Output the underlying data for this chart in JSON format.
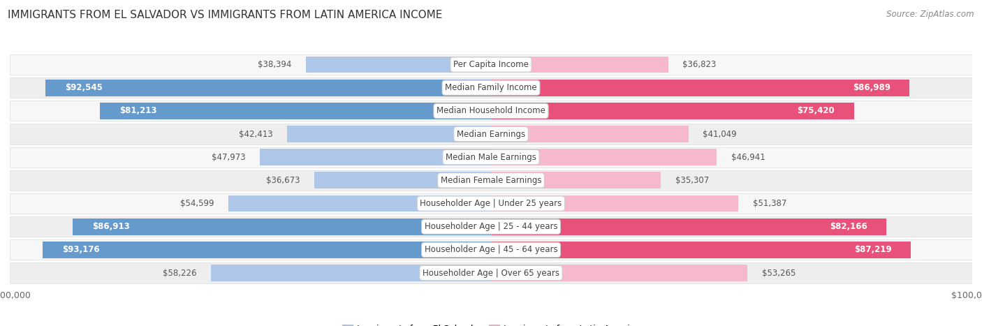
{
  "title": "IMMIGRANTS FROM EL SALVADOR VS IMMIGRANTS FROM LATIN AMERICA INCOME",
  "source": "Source: ZipAtlas.com",
  "categories": [
    "Per Capita Income",
    "Median Family Income",
    "Median Household Income",
    "Median Earnings",
    "Median Male Earnings",
    "Median Female Earnings",
    "Householder Age | Under 25 years",
    "Householder Age | 25 - 44 years",
    "Householder Age | 45 - 64 years",
    "Householder Age | Over 65 years"
  ],
  "el_salvador_values": [
    38394,
    92545,
    81213,
    42413,
    47973,
    36673,
    54599,
    86913,
    93176,
    58226
  ],
  "latin_america_values": [
    36823,
    86989,
    75420,
    41049,
    46941,
    35307,
    51387,
    82166,
    87219,
    53265
  ],
  "el_salvador_light_color": "#aec6e8",
  "el_salvador_dark_color": "#6699cc",
  "latin_america_light_color": "#f5b8cc",
  "latin_america_dark_color": "#e8527a",
  "max_value": 100000,
  "bg_color": "#ffffff",
  "row_light_color": "#f7f7f7",
  "row_dark_color": "#eeeeee",
  "row_border_color": "#dddddd",
  "label_color": "#444444",
  "title_color": "#333333",
  "source_color": "#888888",
  "axis_label_color": "#666666",
  "inside_label_color": "#ffffff",
  "outside_label_color": "#555555",
  "legend_el_salvador": "Immigrants from El Salvador",
  "legend_latin_america": "Immigrants from Latin America",
  "es_inside_threshold": 60000,
  "la_inside_threshold": 60000,
  "cat_label_fontsize": 8.5,
  "val_label_fontsize": 8.5,
  "title_fontsize": 11,
  "source_fontsize": 8.5,
  "legend_fontsize": 9,
  "axis_fontsize": 9
}
